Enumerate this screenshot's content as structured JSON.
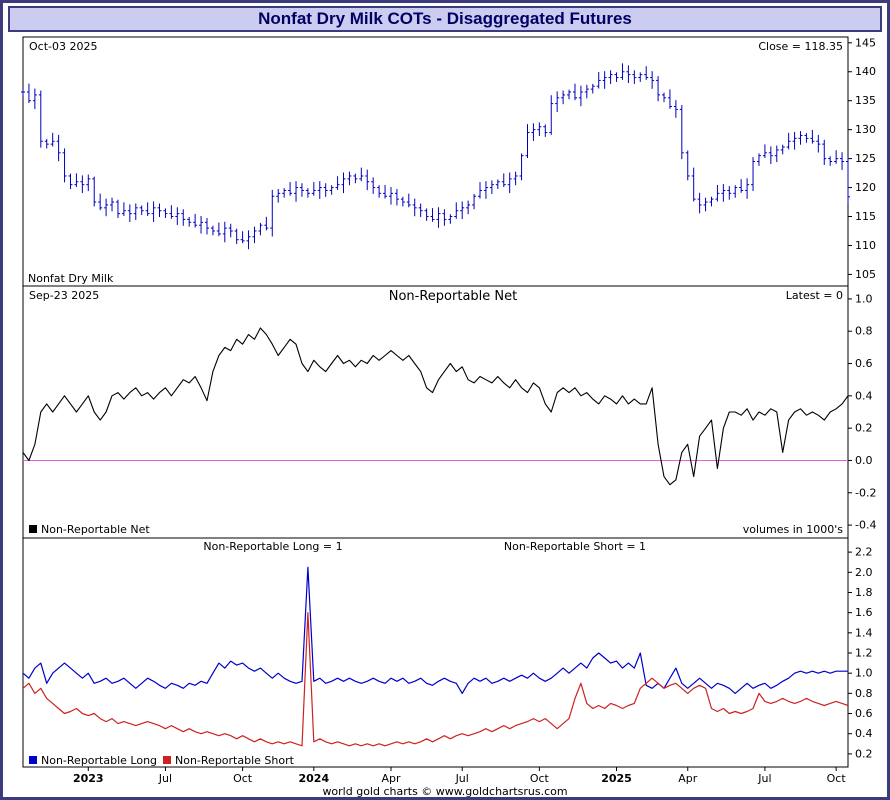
{
  "window": {
    "title": "Nonfat Dry Milk COTs - Disaggregated Futures"
  },
  "footer": {
    "text": "world gold charts © www.goldchartsrus.com"
  },
  "colors": {
    "window_border": "#3c3c7c",
    "titlebar_bg": "#ccccf0",
    "title_text": "#000066",
    "price": "#0000bb",
    "net": "#000000",
    "zero_line": "#e060e0",
    "long": "#0000cc",
    "short": "#cc2222"
  },
  "x_axis": {
    "labels": [
      {
        "label": "2023",
        "i": 11,
        "bold": true
      },
      {
        "label": "Jul",
        "i": 24,
        "bold": false
      },
      {
        "label": "Oct",
        "i": 37,
        "bold": false
      },
      {
        "label": "2024",
        "i": 49,
        "bold": true
      },
      {
        "label": "Apr",
        "i": 62,
        "bold": false
      },
      {
        "label": "Jul",
        "i": 74,
        "bold": false
      },
      {
        "label": "Oct",
        "i": 87,
        "bold": false
      },
      {
        "label": "2025",
        "i": 100,
        "bold": true
      },
      {
        "label": "Apr",
        "i": 112,
        "bold": false
      },
      {
        "label": "Jul",
        "i": 125,
        "bold": false
      },
      {
        "label": "Oct",
        "i": 137,
        "bold": false
      }
    ]
  },
  "chart_data": [
    {
      "type": "ohlc-bar",
      "title": "Nonfat Dry Milk",
      "labels": {
        "date": "Oct-03 2025",
        "close": "Close = 118.35",
        "name": "Nonfat Dry Milk"
      },
      "ylim": [
        103,
        146
      ],
      "yticks": [
        145,
        140,
        135,
        130,
        125,
        120,
        115,
        110,
        105
      ],
      "tick_decimals": 0,
      "close": [
        136.5,
        135,
        136,
        128,
        127.5,
        128,
        126,
        122,
        120.5,
        121,
        120.5,
        121.5,
        117.5,
        116.5,
        117,
        117.5,
        115.5,
        116,
        115.5,
        116.5,
        116,
        115.5,
        116.5,
        116,
        115.5,
        115,
        115.5,
        114.5,
        114,
        113.5,
        114,
        113,
        112.5,
        112,
        113,
        112.5,
        111,
        110.8,
        111.5,
        112.5,
        113.5,
        113,
        118.5,
        119,
        119.5,
        119,
        120,
        119.5,
        119,
        119.5,
        120,
        119.5,
        120,
        120.5,
        121.5,
        122,
        121.5,
        122,
        121,
        120,
        119,
        118.5,
        119,
        118,
        117.5,
        117,
        116.5,
        116,
        115,
        114.5,
        115.5,
        114.5,
        115,
        116,
        116.5,
        117,
        118.5,
        119.5,
        120,
        120.5,
        121,
        120.5,
        121.5,
        122,
        125.5,
        129.5,
        130,
        130.5,
        129.5,
        134.5,
        135.5,
        136,
        136.5,
        135.5,
        136.5,
        137,
        137.5,
        138.5,
        139,
        139.5,
        139,
        140,
        139.5,
        139,
        139.5,
        139,
        138.5,
        136,
        135.5,
        134,
        133.5,
        126,
        122,
        118,
        117,
        117.5,
        118,
        119,
        119.5,
        119,
        120,
        119.5,
        120.5,
        124.5,
        125.5,
        126,
        125.5,
        126.5,
        127,
        128,
        128.5,
        129,
        128.5,
        128,
        127.5,
        125,
        124.5,
        125,
        124.5,
        118.4
      ]
    },
    {
      "type": "line",
      "title": "Non-Reportable Net",
      "labels": {
        "date": "Sep-23 2025",
        "latest": "Latest = 0",
        "legend": "Non-Reportable Net",
        "note": "volumes in 1000's"
      },
      "ylim": [
        -0.48,
        1.08
      ],
      "yticks": [
        1.0,
        0.8,
        0.6,
        0.4,
        0.2,
        0.0,
        -0.2,
        -0.4
      ],
      "tick_decimals": 1,
      "zero_line": 0,
      "values": [
        0.05,
        0.0,
        0.1,
        0.3,
        0.35,
        0.3,
        0.35,
        0.4,
        0.35,
        0.3,
        0.35,
        0.4,
        0.3,
        0.25,
        0.3,
        0.4,
        0.42,
        0.38,
        0.42,
        0.45,
        0.4,
        0.42,
        0.38,
        0.42,
        0.45,
        0.4,
        0.45,
        0.5,
        0.48,
        0.52,
        0.45,
        0.37,
        0.55,
        0.65,
        0.7,
        0.68,
        0.75,
        0.72,
        0.78,
        0.75,
        0.82,
        0.78,
        0.72,
        0.65,
        0.7,
        0.75,
        0.72,
        0.6,
        0.55,
        0.62,
        0.58,
        0.55,
        0.6,
        0.65,
        0.6,
        0.62,
        0.58,
        0.62,
        0.6,
        0.65,
        0.62,
        0.65,
        0.68,
        0.65,
        0.62,
        0.65,
        0.6,
        0.55,
        0.45,
        0.42,
        0.5,
        0.55,
        0.6,
        0.55,
        0.58,
        0.5,
        0.48,
        0.52,
        0.5,
        0.48,
        0.52,
        0.48,
        0.45,
        0.5,
        0.45,
        0.42,
        0.48,
        0.45,
        0.35,
        0.3,
        0.42,
        0.45,
        0.42,
        0.45,
        0.4,
        0.42,
        0.38,
        0.35,
        0.4,
        0.38,
        0.35,
        0.4,
        0.35,
        0.38,
        0.35,
        0.35,
        0.45,
        0.1,
        -0.1,
        -0.15,
        -0.12,
        0.05,
        0.1,
        -0.1,
        0.15,
        0.2,
        0.25,
        -0.05,
        0.2,
        0.3,
        0.3,
        0.28,
        0.32,
        0.25,
        0.3,
        0.28,
        0.32,
        0.3,
        0.05,
        0.25,
        0.3,
        0.32,
        0.28,
        0.3,
        0.28,
        0.25,
        0.3,
        0.32,
        0.35,
        0.4
      ]
    },
    {
      "type": "line",
      "title": "Non-Reportable Long / Short",
      "labels": {
        "long_annotation": "Non-Reportable Long = 1",
        "short_annotation": "Non-Reportable Short = 1"
      },
      "ylim": [
        0.07,
        2.34
      ],
      "yticks": [
        2.2,
        2.0,
        1.8,
        1.6,
        1.4,
        1.2,
        1.0,
        0.8,
        0.6,
        0.4,
        0.2
      ],
      "tick_decimals": 1,
      "series": [
        {
          "name": "Non-Reportable Long",
          "color": "#0000cc",
          "values": [
            1.0,
            0.95,
            1.05,
            1.1,
            0.9,
            1.0,
            1.05,
            1.1,
            1.05,
            1.0,
            0.95,
            1.0,
            0.9,
            0.92,
            0.95,
            0.9,
            0.92,
            0.95,
            0.9,
            0.85,
            0.9,
            0.95,
            0.92,
            0.88,
            0.85,
            0.9,
            0.88,
            0.85,
            0.9,
            0.88,
            0.92,
            0.9,
            1.0,
            1.1,
            1.05,
            1.12,
            1.08,
            1.1,
            1.05,
            1.02,
            1.05,
            1.0,
            0.95,
            1.0,
            0.95,
            0.92,
            0.9,
            0.92,
            2.05,
            0.92,
            0.95,
            0.9,
            0.92,
            0.95,
            0.92,
            0.95,
            0.92,
            0.9,
            0.92,
            0.95,
            0.92,
            0.9,
            0.95,
            0.92,
            0.95,
            0.9,
            0.92,
            0.95,
            0.9,
            0.88,
            0.92,
            0.95,
            0.92,
            0.9,
            0.8,
            0.9,
            0.95,
            0.92,
            0.95,
            0.9,
            0.92,
            0.95,
            0.92,
            0.95,
            0.98,
            0.95,
            1.0,
            0.95,
            0.92,
            0.95,
            1.0,
            1.05,
            1.0,
            1.05,
            1.1,
            1.05,
            1.15,
            1.2,
            1.15,
            1.1,
            1.12,
            1.05,
            1.1,
            1.05,
            1.2,
            0.88,
            0.85,
            0.9,
            0.85,
            0.95,
            1.05,
            0.9,
            0.85,
            0.9,
            0.95,
            0.9,
            0.85,
            0.9,
            0.88,
            0.85,
            0.8,
            0.85,
            0.9,
            0.85,
            0.88,
            0.9,
            0.85,
            0.88,
            0.92,
            0.95,
            1.0,
            1.02,
            1.0,
            1.02,
            1.0,
            1.02,
            1.0,
            1.02,
            1.02,
            1.02
          ]
        },
        {
          "name": "Non-Reportable Short",
          "color": "#cc2222",
          "values": [
            0.85,
            0.9,
            0.8,
            0.85,
            0.75,
            0.7,
            0.65,
            0.6,
            0.62,
            0.65,
            0.6,
            0.58,
            0.6,
            0.55,
            0.52,
            0.55,
            0.5,
            0.52,
            0.5,
            0.48,
            0.5,
            0.52,
            0.5,
            0.48,
            0.45,
            0.48,
            0.45,
            0.42,
            0.45,
            0.42,
            0.4,
            0.42,
            0.4,
            0.38,
            0.4,
            0.38,
            0.35,
            0.38,
            0.35,
            0.32,
            0.35,
            0.32,
            0.3,
            0.32,
            0.3,
            0.32,
            0.3,
            0.28,
            1.6,
            0.32,
            0.35,
            0.32,
            0.3,
            0.32,
            0.3,
            0.28,
            0.3,
            0.28,
            0.3,
            0.28,
            0.3,
            0.28,
            0.3,
            0.32,
            0.3,
            0.32,
            0.3,
            0.32,
            0.35,
            0.32,
            0.35,
            0.38,
            0.35,
            0.38,
            0.4,
            0.38,
            0.4,
            0.42,
            0.45,
            0.42,
            0.45,
            0.48,
            0.45,
            0.48,
            0.5,
            0.52,
            0.55,
            0.52,
            0.55,
            0.5,
            0.45,
            0.5,
            0.55,
            0.75,
            0.9,
            0.7,
            0.65,
            0.68,
            0.65,
            0.7,
            0.68,
            0.65,
            0.68,
            0.7,
            0.85,
            0.9,
            0.95,
            0.9,
            0.85,
            0.88,
            0.9,
            0.85,
            0.8,
            0.85,
            0.88,
            0.85,
            0.65,
            0.62,
            0.65,
            0.6,
            0.62,
            0.6,
            0.62,
            0.65,
            0.8,
            0.72,
            0.7,
            0.72,
            0.75,
            0.72,
            0.7,
            0.72,
            0.75,
            0.72,
            0.7,
            0.68,
            0.7,
            0.72,
            0.7,
            0.68
          ]
        }
      ]
    }
  ]
}
